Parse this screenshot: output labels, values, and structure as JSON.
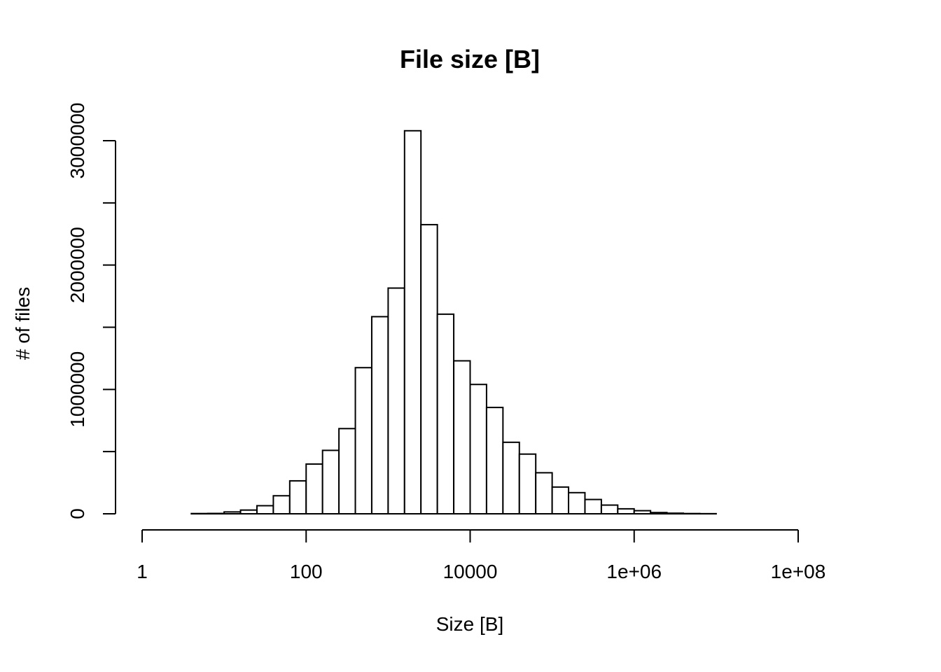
{
  "chart_data": {
    "type": "bar",
    "title": "File size [B]",
    "xlabel": "Size [B]",
    "ylabel": "# of files",
    "x_scale": "log10",
    "xlim": [
      1,
      100000000
    ],
    "ylim": [
      0,
      3000000
    ],
    "x_tick_labels": [
      "1",
      "100",
      "10000",
      "1e+06",
      "1e+08"
    ],
    "x_tick_values": [
      1,
      100,
      10000,
      1000000,
      100000000
    ],
    "y_tick_labels": [
      "0",
      "1000000",
      "2000000",
      "3000000"
    ],
    "y_tick_values": [
      0,
      500000,
      1000000,
      1500000,
      2000000,
      2500000,
      3000000
    ],
    "bin_width_log10": 0.2,
    "log10_bin_edges": [
      0.0,
      0.2,
      0.4,
      0.6,
      0.8,
      1.0,
      1.2,
      1.4,
      1.6,
      1.8,
      2.0,
      2.2,
      2.4,
      2.6,
      2.8,
      3.0,
      3.2,
      3.4,
      3.6,
      3.8,
      4.0,
      4.2,
      4.4,
      4.6,
      4.8,
      5.0,
      5.2,
      5.4,
      5.6,
      5.8,
      6.0,
      6.2,
      6.4,
      6.6,
      6.8,
      7.0,
      7.2,
      7.4,
      7.6,
      7.8,
      8.0
    ],
    "counts": [
      0,
      0,
      0,
      2000,
      3000,
      15000,
      30000,
      65000,
      145000,
      265000,
      400000,
      510000,
      685000,
      1175000,
      1585000,
      1815000,
      3080000,
      2325000,
      1605000,
      1230000,
      1040000,
      855000,
      575000,
      480000,
      330000,
      215000,
      170000,
      115000,
      70000,
      40000,
      25000,
      10000,
      5000,
      2000,
      1000,
      0,
      0,
      0,
      0,
      0
    ]
  }
}
